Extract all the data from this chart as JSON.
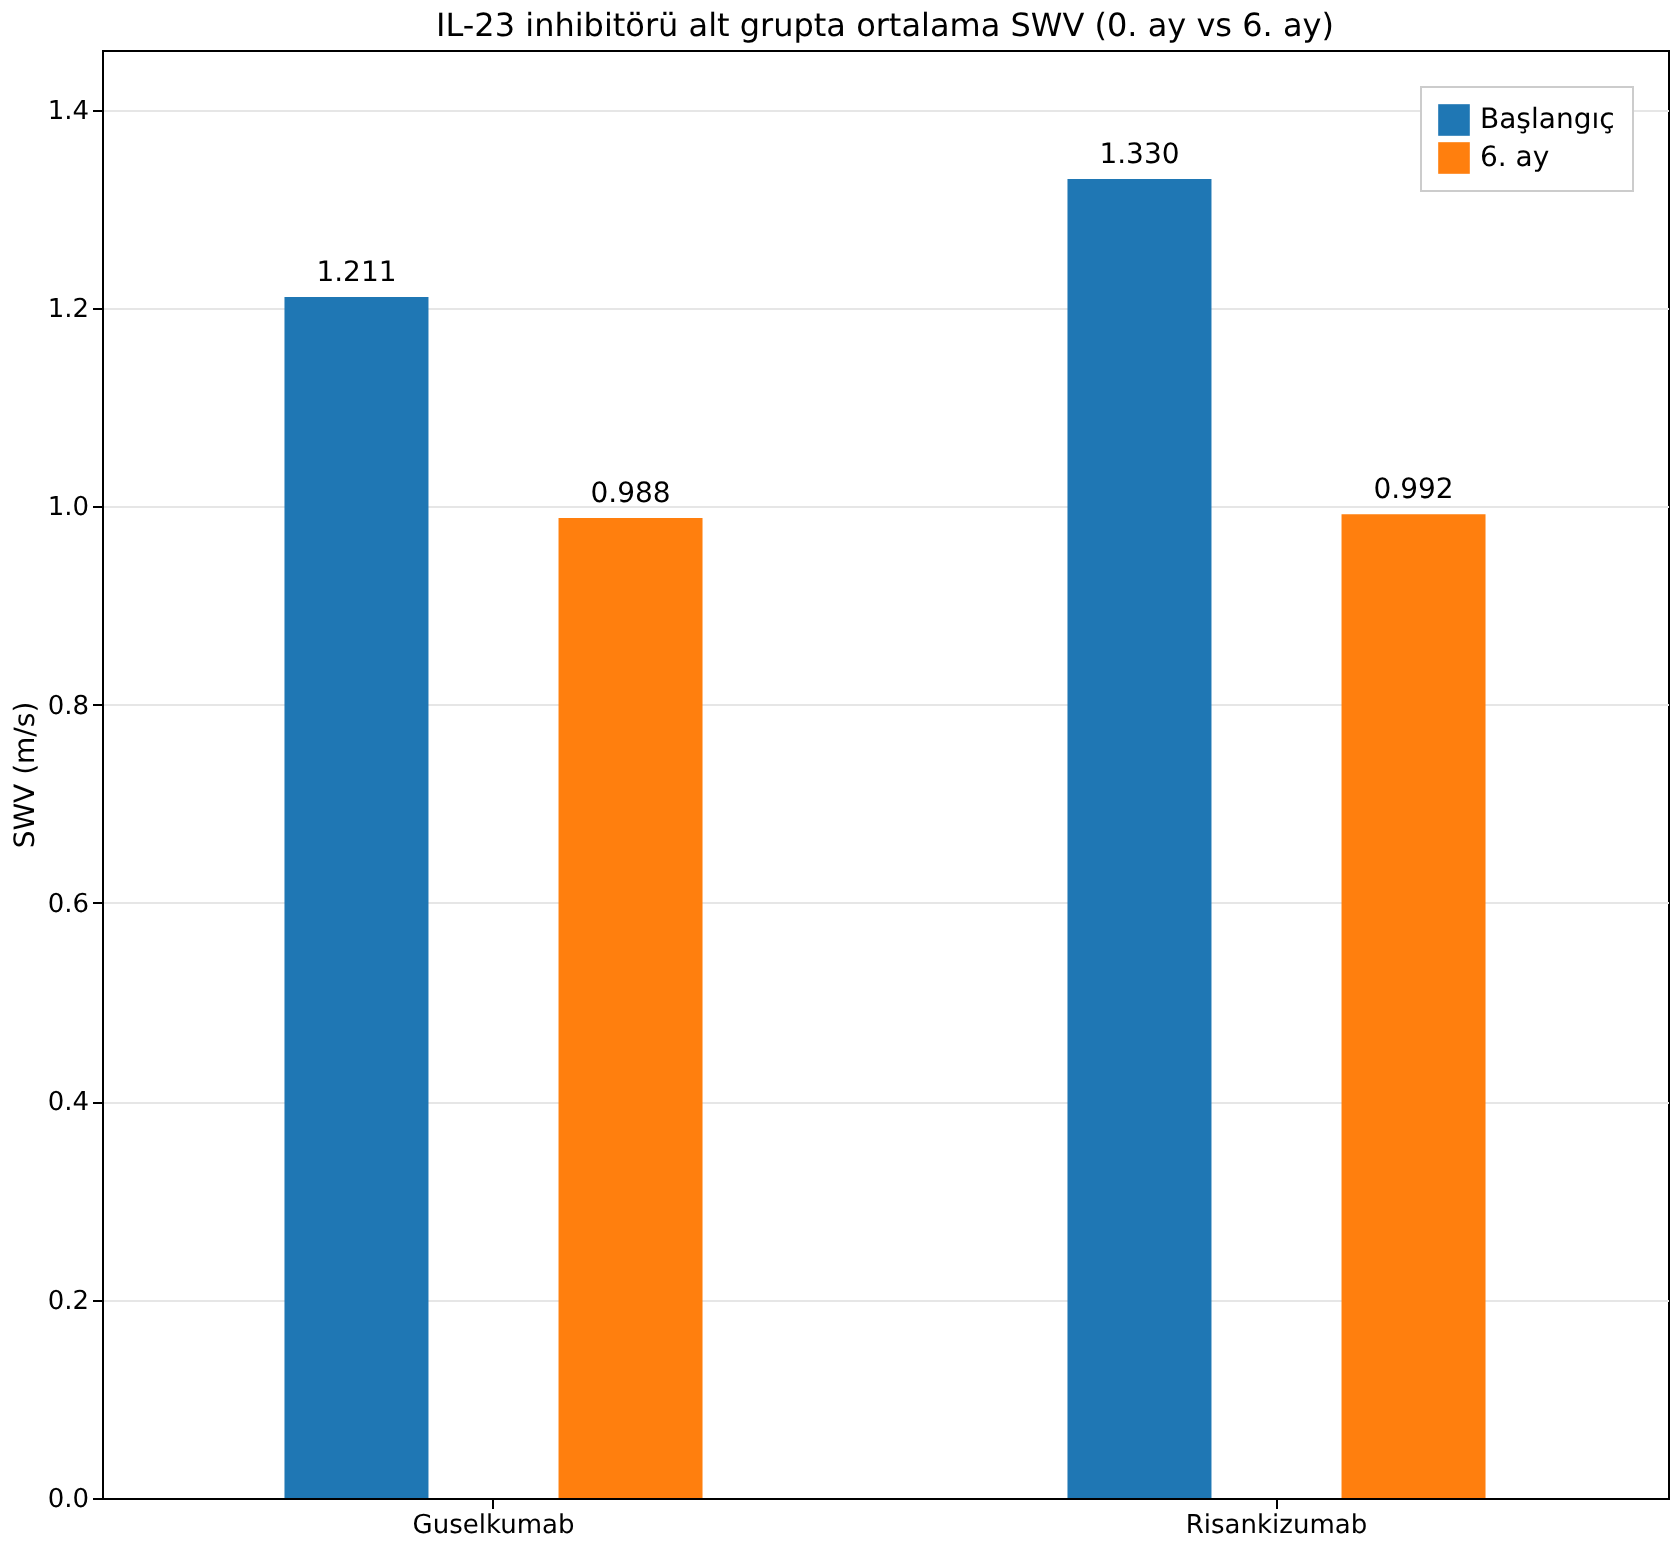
{
  "chart_data": {
    "type": "bar",
    "title": "IL-23 inhibitörü alt grupta ortalama SWV (0. ay vs 6. ay)",
    "ylabel": "SWV (m/s)",
    "categories": [
      "Guselkumab",
      "Risankizumab"
    ],
    "series": [
      {
        "name": "Başlangıç",
        "color": "#1f77b4",
        "values": [
          1.211,
          1.33
        ],
        "value_labels": [
          "1.211",
          "1.330"
        ]
      },
      {
        "name": "6. ay",
        "color": "#ff7f0e",
        "values": [
          0.988,
          0.992
        ],
        "value_labels": [
          "0.988",
          "0.992"
        ]
      }
    ],
    "ylim": [
      0,
      1.46
    ],
    "yticks": [
      {
        "value": 0,
        "label": "0.0"
      },
      {
        "value": 0.2,
        "label": "0.2"
      },
      {
        "value": 0.4,
        "label": "0.4"
      },
      {
        "value": 0.6,
        "label": "0.6"
      },
      {
        "value": 0.8,
        "label": "0.8"
      },
      {
        "value": 1,
        "label": "1.0"
      },
      {
        "value": 1.2,
        "label": "1.2"
      },
      {
        "value": 1.4,
        "label": "1.4"
      }
    ],
    "grid": "y",
    "legend": "top right"
  }
}
